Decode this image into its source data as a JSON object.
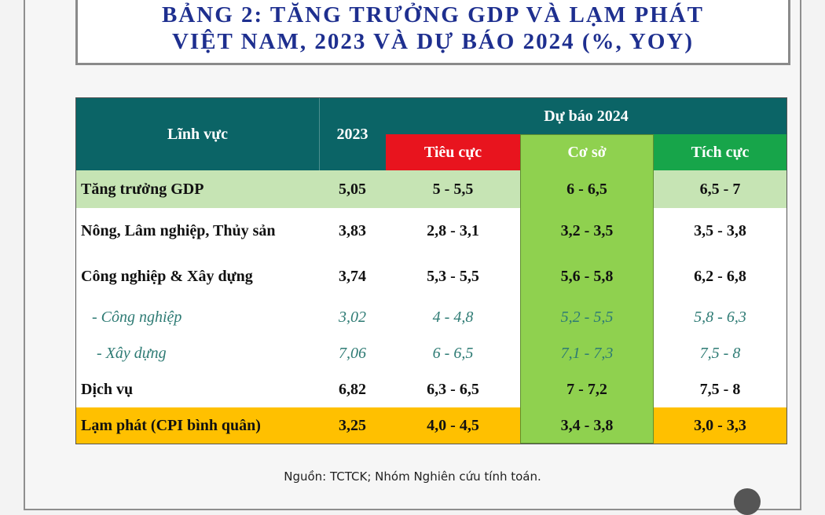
{
  "title": {
    "line1": "BẢNG 2: TĂNG TRƯỞNG GDP VÀ LẠM PHÁT",
    "line2": "VIỆT NAM, 2023 VÀ DỰ BÁO 2024 (%, YOY)"
  },
  "table": {
    "header": {
      "sector": "Lĩnh vực",
      "year2023": "2023",
      "forecast": "Dự báo 2024",
      "negative": "Tiêu cực",
      "base": "Cơ sở",
      "positive": "Tích cực"
    },
    "rows": [
      {
        "label": "Tăng trưởng GDP",
        "y2023": "5,05",
        "neg": "5 - 5,5",
        "base": "6 - 6,5",
        "pos": "6,5 - 7"
      },
      {
        "label": "Nông, Lâm nghiệp, Thủy sản",
        "y2023": "3,83",
        "neg": "2,8 - 3,1",
        "base": "3,2 - 3,5",
        "pos": "3,5 - 3,8"
      },
      {
        "label": "Công nghiệp & Xây dựng",
        "y2023": "3,74",
        "neg": "5,3 - 5,5",
        "base": "5,6 - 5,8",
        "pos": "6,2 - 6,8"
      },
      {
        "label": "- Công nghiệp",
        "y2023": "3,02",
        "neg": "4 - 4,8",
        "base": "5,2 - 5,5",
        "pos": "5,8 - 6,3"
      },
      {
        "label": "- Xây dựng",
        "y2023": "7,06",
        "neg": "6 - 6,5",
        "base": "7,1 - 7,3",
        "pos": "7,5 - 8"
      },
      {
        "label": "Dịch vụ",
        "y2023": "6,82",
        "neg": "6,3 - 6,5",
        "base": "7 - 7,2",
        "pos": "7,5 - 8"
      },
      {
        "label": "Lạm phát (CPI bình quân)",
        "y2023": "3,25",
        "neg": "4,0 - 4,5",
        "base": "3,4 - 3,8",
        "pos": "3,0 - 3,3"
      }
    ]
  },
  "source": "Nguồn: TCTCK; Nhóm Nghiên cứu tính toán.",
  "colors": {
    "title": "#1e2f8f",
    "header_bg": "#0b6466",
    "negative_bg": "#e8141e",
    "base_bg": "#8fd14f",
    "positive_bg": "#17a54a",
    "gdp_row_bg": "#c6e4b4",
    "cpi_row_bg": "#ffc000",
    "italic_text": "#2e7b74"
  }
}
